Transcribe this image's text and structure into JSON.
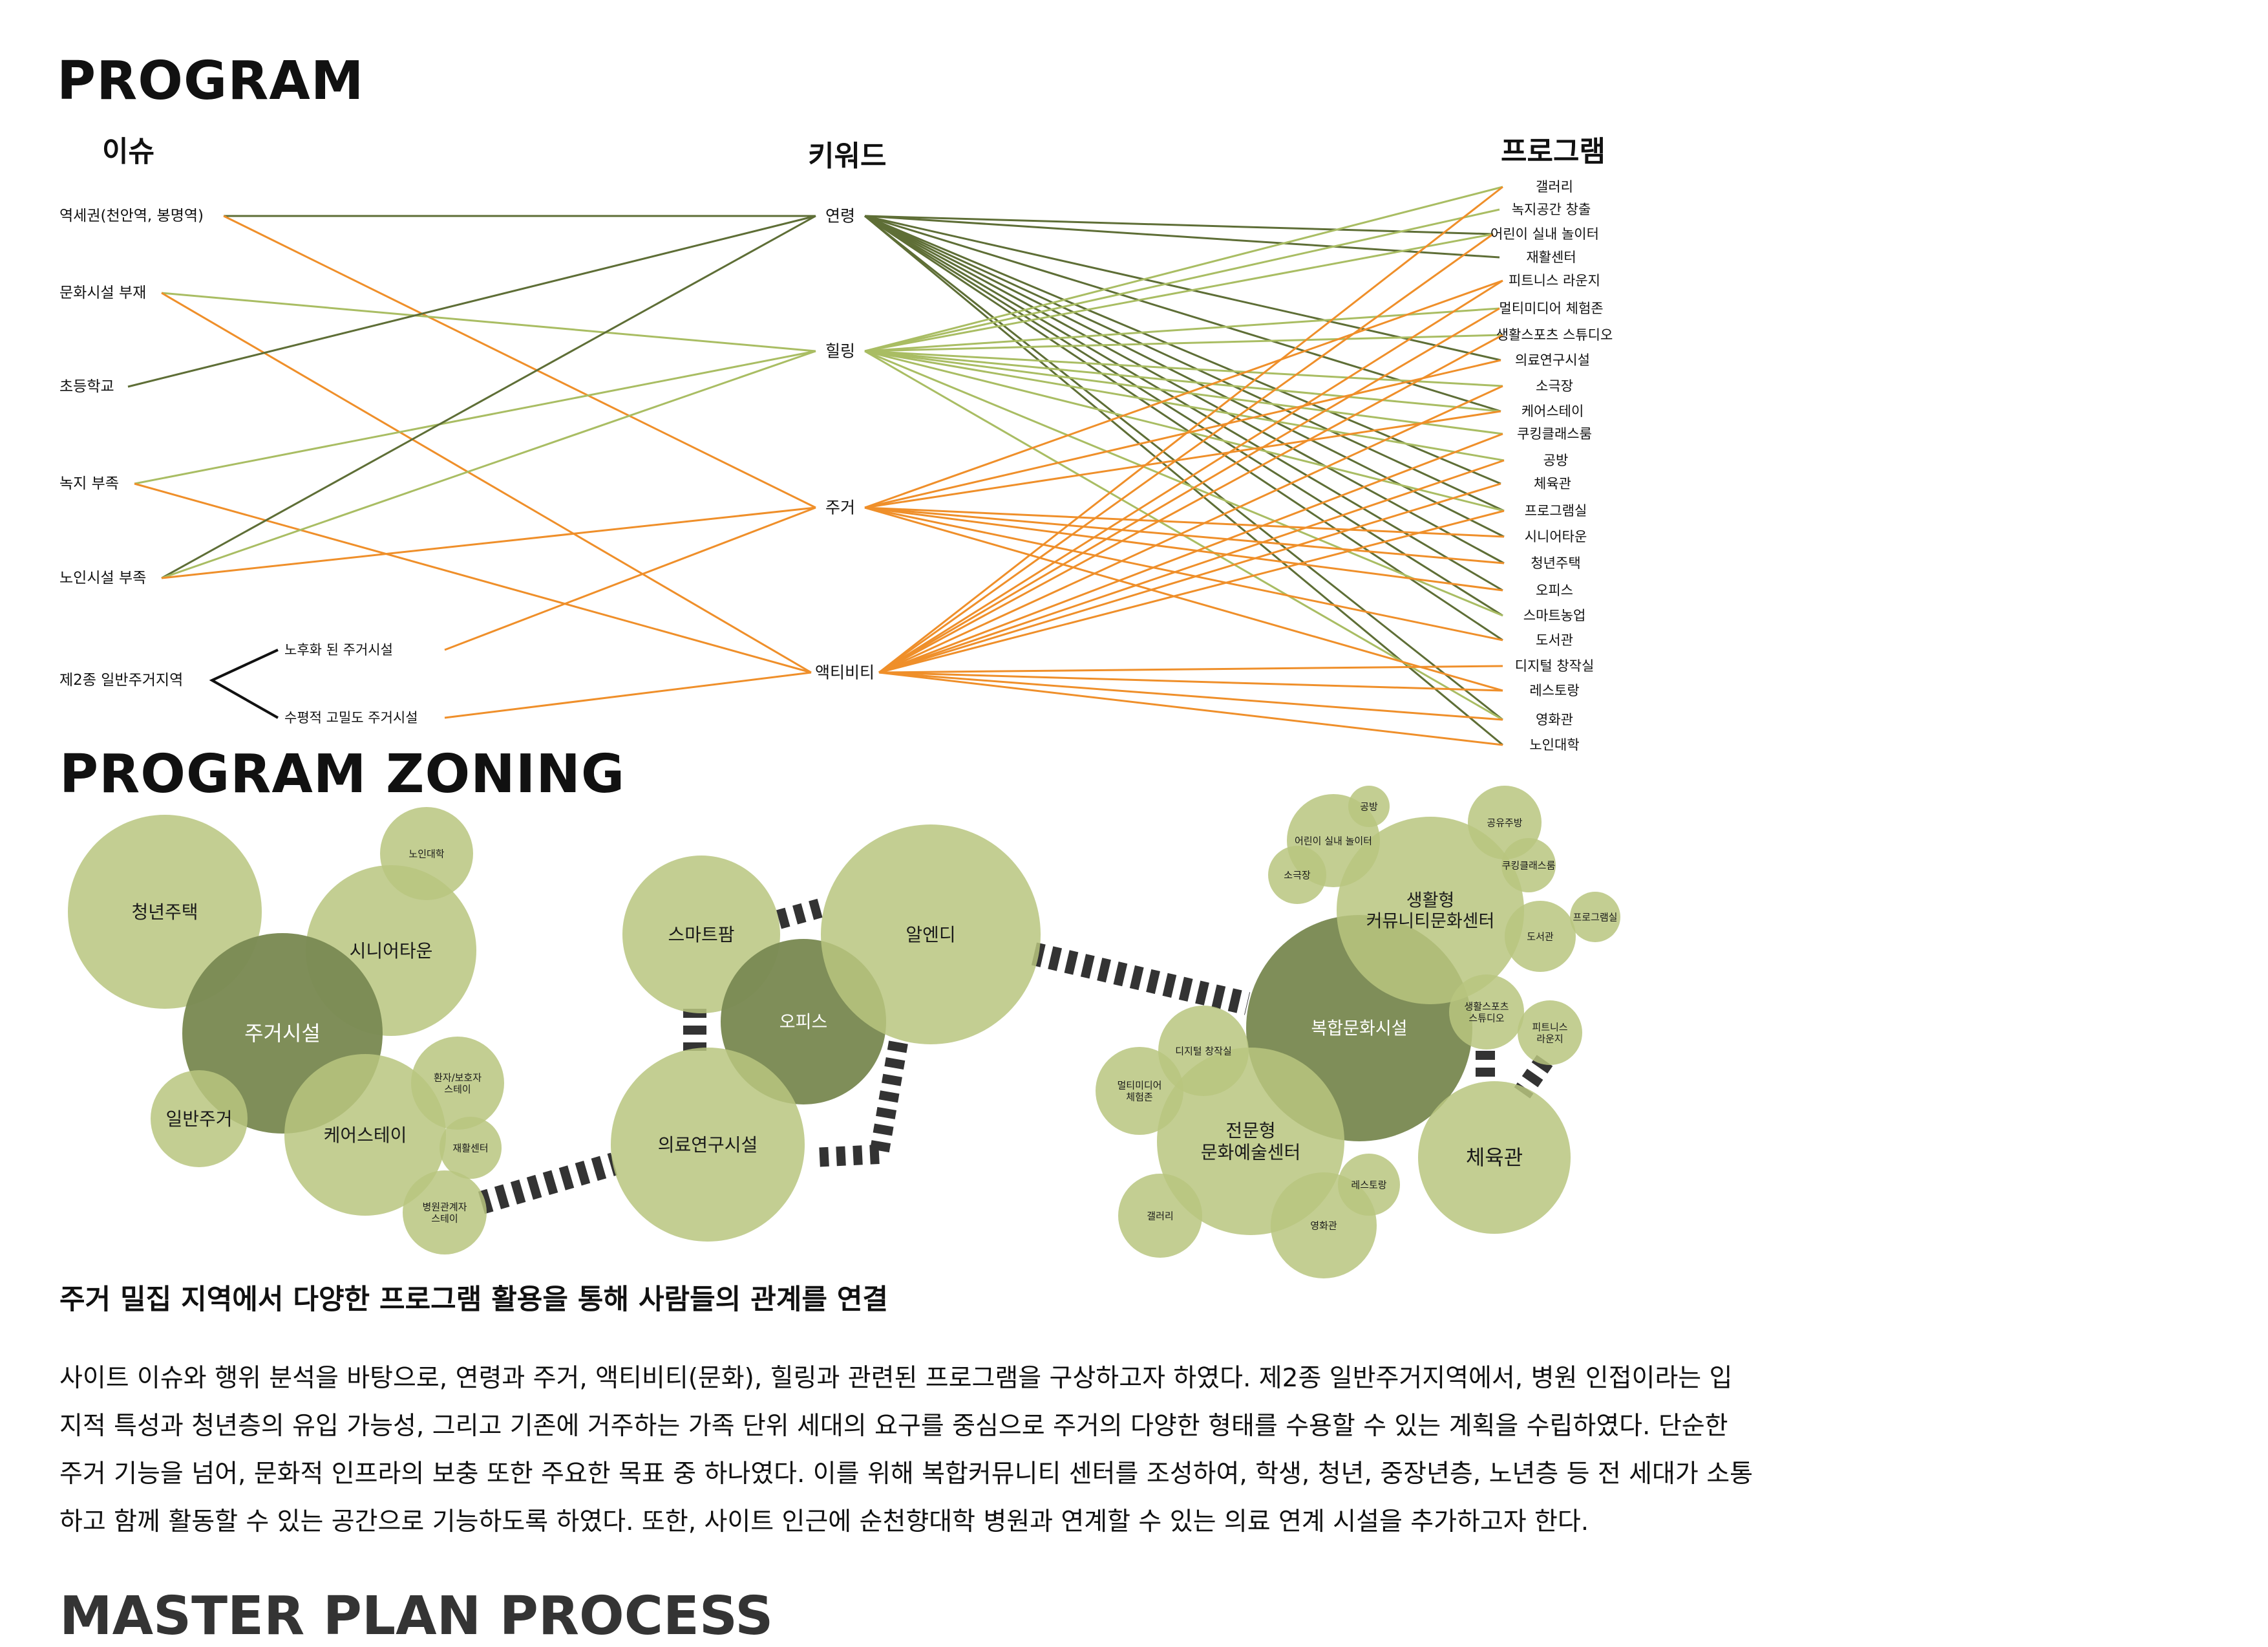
{
  "headings": {
    "program": "PROGRAM",
    "zoning": "PROGRAM ZONING",
    "next_section": "MASTER PLAN PROCESS"
  },
  "columns": {
    "issue": "이슈",
    "keyword": "키워드",
    "program": "프로그램"
  },
  "colors": {
    "dark_olive": "#5e6e36",
    "light_green": "#a9bd63",
    "orange": "#ef8f2a",
    "circle_light": "#b9c57f",
    "circle_dark": "#7b8a54",
    "connector": "#333333"
  },
  "issues": [
    {
      "label": "역세권(천안역, 봉명역)"
    },
    {
      "label": "문화시설 부재"
    },
    {
      "label": "초등학교"
    },
    {
      "label": "녹지 부족"
    },
    {
      "label": "노인시설 부족"
    },
    {
      "label": "제2종 일반주거지역"
    }
  ],
  "sub_issues": [
    {
      "label": "노후화 된 주거시설"
    },
    {
      "label": "수평적 고밀도 주거시설"
    }
  ],
  "keywords": [
    {
      "label": "연령"
    },
    {
      "label": "힐링"
    },
    {
      "label": "주거"
    },
    {
      "label": "액티비티"
    }
  ],
  "programs": [
    {
      "label": "갤러리"
    },
    {
      "label": "녹지공간 창출"
    },
    {
      "label": "어린이 실내 놀이터"
    },
    {
      "label": "재활센터"
    },
    {
      "label": "피트니스 라운지"
    },
    {
      "label": "멀티미디어 체험존"
    },
    {
      "label": "생활스포츠 스튜디오"
    },
    {
      "label": "의료연구시설"
    },
    {
      "label": "소극장"
    },
    {
      "label": "케어스테이"
    },
    {
      "label": "쿠킹클래스룸"
    },
    {
      "label": "공방"
    },
    {
      "label": "체육관"
    },
    {
      "label": "프로그램실"
    },
    {
      "label": "시니어타운"
    },
    {
      "label": "청년주택"
    },
    {
      "label": "오피스"
    },
    {
      "label": "스마트농업"
    },
    {
      "label": "도서관"
    },
    {
      "label": "디지털 창작실"
    },
    {
      "label": "레스토랑"
    },
    {
      "label": "영화관"
    },
    {
      "label": "노인대학"
    }
  ],
  "zoning": {
    "circles": [
      {
        "label": "청년주택",
        "tone": "light"
      },
      {
        "label": "노인대학",
        "tone": "light"
      },
      {
        "label": "시니어타운",
        "tone": "light"
      },
      {
        "label": "주거시설",
        "tone": "dark"
      },
      {
        "label": "일반주거",
        "tone": "light"
      },
      {
        "label": "케어스테이",
        "tone": "light"
      },
      {
        "label": "환자/보호자\n스테이",
        "tone": "light"
      },
      {
        "label": "재활센터",
        "tone": "light"
      },
      {
        "label": "병원관계자\n스테이",
        "tone": "light"
      },
      {
        "label": "스마트팜",
        "tone": "light"
      },
      {
        "label": "오피스",
        "tone": "dark"
      },
      {
        "label": "알엔디",
        "tone": "light"
      },
      {
        "label": "의료연구시설",
        "tone": "light"
      },
      {
        "label": "어린이 실내 놀이터",
        "tone": "light"
      },
      {
        "label": "공방",
        "tone": "light"
      },
      {
        "label": "소극장",
        "tone": "light"
      },
      {
        "label": "공유주방",
        "tone": "light"
      },
      {
        "label": "쿠킹클래스룸",
        "tone": "light"
      },
      {
        "label": "프로그램실",
        "tone": "light"
      },
      {
        "label": "도서관",
        "tone": "light"
      },
      {
        "label": "복합문화시설",
        "tone": "dark"
      },
      {
        "label": "생활형\n커뮤니티문화센터",
        "tone": "light"
      },
      {
        "label": "생활스포츠\n스튜디오",
        "tone": "light"
      },
      {
        "label": "피트니스\n라운지",
        "tone": "light"
      },
      {
        "label": "디지털 창작실",
        "tone": "light"
      },
      {
        "label": "멀티미디어\n체험존",
        "tone": "light"
      },
      {
        "label": "전문형\n문화예술센터",
        "tone": "light"
      },
      {
        "label": "체육관",
        "tone": "light"
      },
      {
        "label": "레스토랑",
        "tone": "light"
      },
      {
        "label": "갤러리",
        "tone": "light"
      },
      {
        "label": "영화관",
        "tone": "light"
      }
    ]
  },
  "summary_title": "주거 밀집 지역에서 다양한 프로그램 활용을 통해 사람들의 관계를 연결",
  "paragraph_lines": [
    "사이트 이슈와 행위 분석을 바탕으로, 연령과 주거, 액티비티(문화), 힐링과 관련된 프로그램을 구상하고자 하였다. 제2종 일반주거지역에서, 병원 인접이라는 입",
    "지적 특성과 청년층의 유입 가능성, 그리고 기존에 거주하는 가족 단위 세대의 요구를 중심으로 주거의 다양한 형태를 수용할 수 있는 계획을 수립하였다. 단순한",
    "주거 기능을 넘어, 문화적 인프라의 보충 또한 주요한 목표 중 하나였다. 이를 위해 복합커뮤니티 센터를 조성하여, 학생, 청년, 중장년층, 노년층 등 전 세대가 소통",
    "하고 함께 활동할 수 있는 공간으로 기능하도록 하였다. 또한, 사이트 인근에 순천향대학 병원과 연계할 수 있는 의료 연계 시설을 추가하고자 한다."
  ]
}
